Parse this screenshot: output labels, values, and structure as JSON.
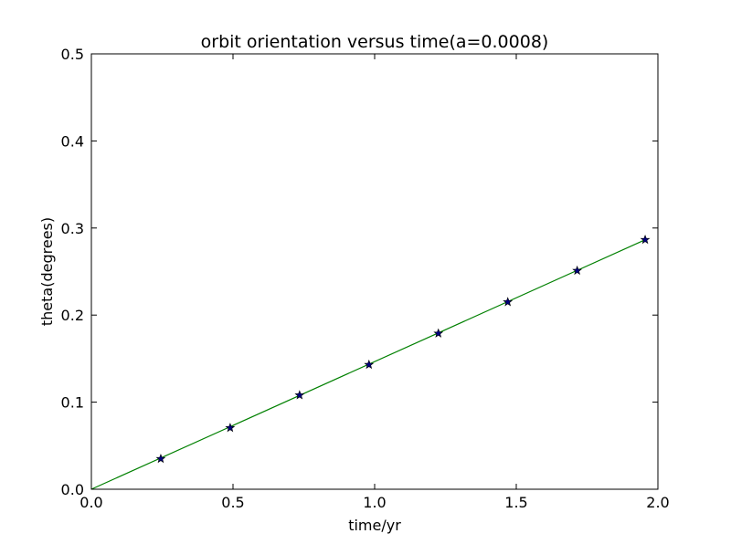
{
  "chart_data": {
    "type": "line",
    "title": "orbit orientation versus time(a=0.0008)",
    "xlabel": "time/yr",
    "ylabel": "theta(degrees)",
    "xlim": [
      0.0,
      2.0
    ],
    "ylim": [
      0.0,
      0.5
    ],
    "xticks": [
      "0.0",
      "0.5",
      "1.0",
      "1.5",
      "2.0"
    ],
    "yticks": [
      "0.0",
      "0.1",
      "0.2",
      "0.3",
      "0.4",
      "0.5"
    ],
    "grid": false,
    "series": [
      {
        "kind": "line",
        "color": "#008000",
        "x": [
          0.0,
          1.955
        ],
        "y": [
          0.0,
          0.2865
        ]
      },
      {
        "kind": "scatter",
        "marker": "star",
        "color": "#00007f",
        "x": [
          0.245,
          0.49,
          0.735,
          0.98,
          1.225,
          1.47,
          1.715,
          1.955
        ],
        "y": [
          0.035,
          0.0705,
          0.108,
          0.143,
          0.179,
          0.215,
          0.251,
          0.2865
        ]
      }
    ]
  }
}
